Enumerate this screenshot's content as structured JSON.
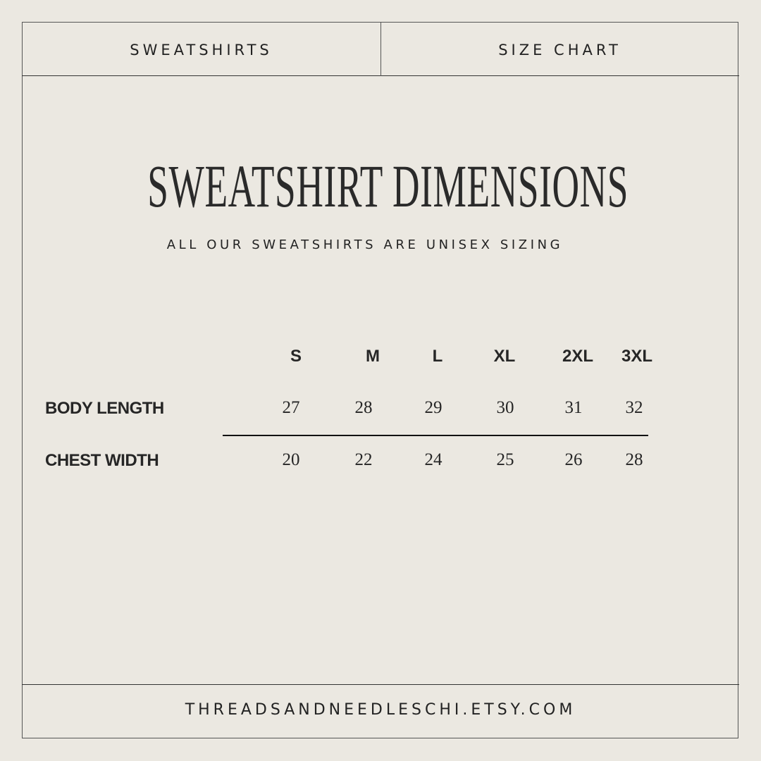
{
  "header": {
    "left_label": "SWEATSHIRTS",
    "right_label": "SIZE CHART"
  },
  "title": "SWEATSHIRT DIMENSIONS",
  "subtitle": "ALL OUR SWEATSHIRTS ARE UNISEX SIZING",
  "table": {
    "sizes": [
      "S",
      "M",
      "L",
      "XL",
      "2XL",
      "3XL"
    ],
    "rows": [
      {
        "label": "BODY LENGTH",
        "values": [
          "27",
          "28",
          "29",
          "30",
          "31",
          "32"
        ]
      },
      {
        "label": "CHEST WIDTH",
        "values": [
          "20",
          "22",
          "24",
          "25",
          "26",
          "28"
        ]
      }
    ]
  },
  "footer": "THREADSANDNEEDLESCHI.ETSY.COM",
  "colors": {
    "background": "#ebe8e1",
    "text": "#262626"
  }
}
